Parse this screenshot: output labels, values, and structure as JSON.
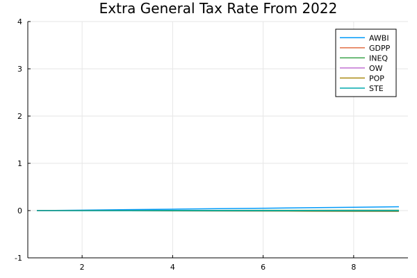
{
  "chart_data": {
    "type": "line",
    "title": "Extra General Tax Rate From 2022",
    "xlabel": "",
    "ylabel": "",
    "xlim": [
      0.8,
      9.2
    ],
    "ylim": [
      -1,
      4
    ],
    "xticks": [
      2,
      4,
      6,
      8
    ],
    "yticks": [
      -1,
      0,
      1,
      2,
      3,
      4
    ],
    "grid": true,
    "legend_position": "top-right",
    "x": [
      1,
      2,
      3,
      4,
      5,
      6,
      7,
      8,
      9
    ],
    "series": [
      {
        "name": "AWBI",
        "color": "#009af9",
        "values": [
          0,
          0.01,
          0.02,
          0.03,
          0.04,
          0.05,
          0.06,
          0.07,
          0.08
        ]
      },
      {
        "name": "GDPP",
        "color": "#e26f46",
        "values": [
          0,
          -0.002,
          -0.004,
          -0.006,
          -0.008,
          -0.01,
          -0.012,
          -0.014,
          -0.016
        ]
      },
      {
        "name": "INEQ",
        "color": "#3da44d",
        "values": [
          0,
          0.001,
          0.002,
          0.003,
          0.004,
          0.005,
          0.006,
          0.007,
          0.008
        ]
      },
      {
        "name": "OW",
        "color": "#c271d2",
        "values": [
          0,
          -0.001,
          -0.002,
          -0.003,
          -0.004,
          -0.005,
          -0.006,
          -0.007,
          -0.008
        ]
      },
      {
        "name": "POP",
        "color": "#ac8d18",
        "values": [
          0,
          -0.002,
          -0.004,
          -0.006,
          -0.008,
          -0.01,
          -0.012,
          -0.014,
          -0.015
        ]
      },
      {
        "name": "STE",
        "color": "#00a9ad",
        "values": [
          0,
          -0.001,
          -0.002,
          -0.002,
          -0.003,
          -0.004,
          -0.004,
          -0.005,
          -0.006
        ]
      }
    ]
  }
}
